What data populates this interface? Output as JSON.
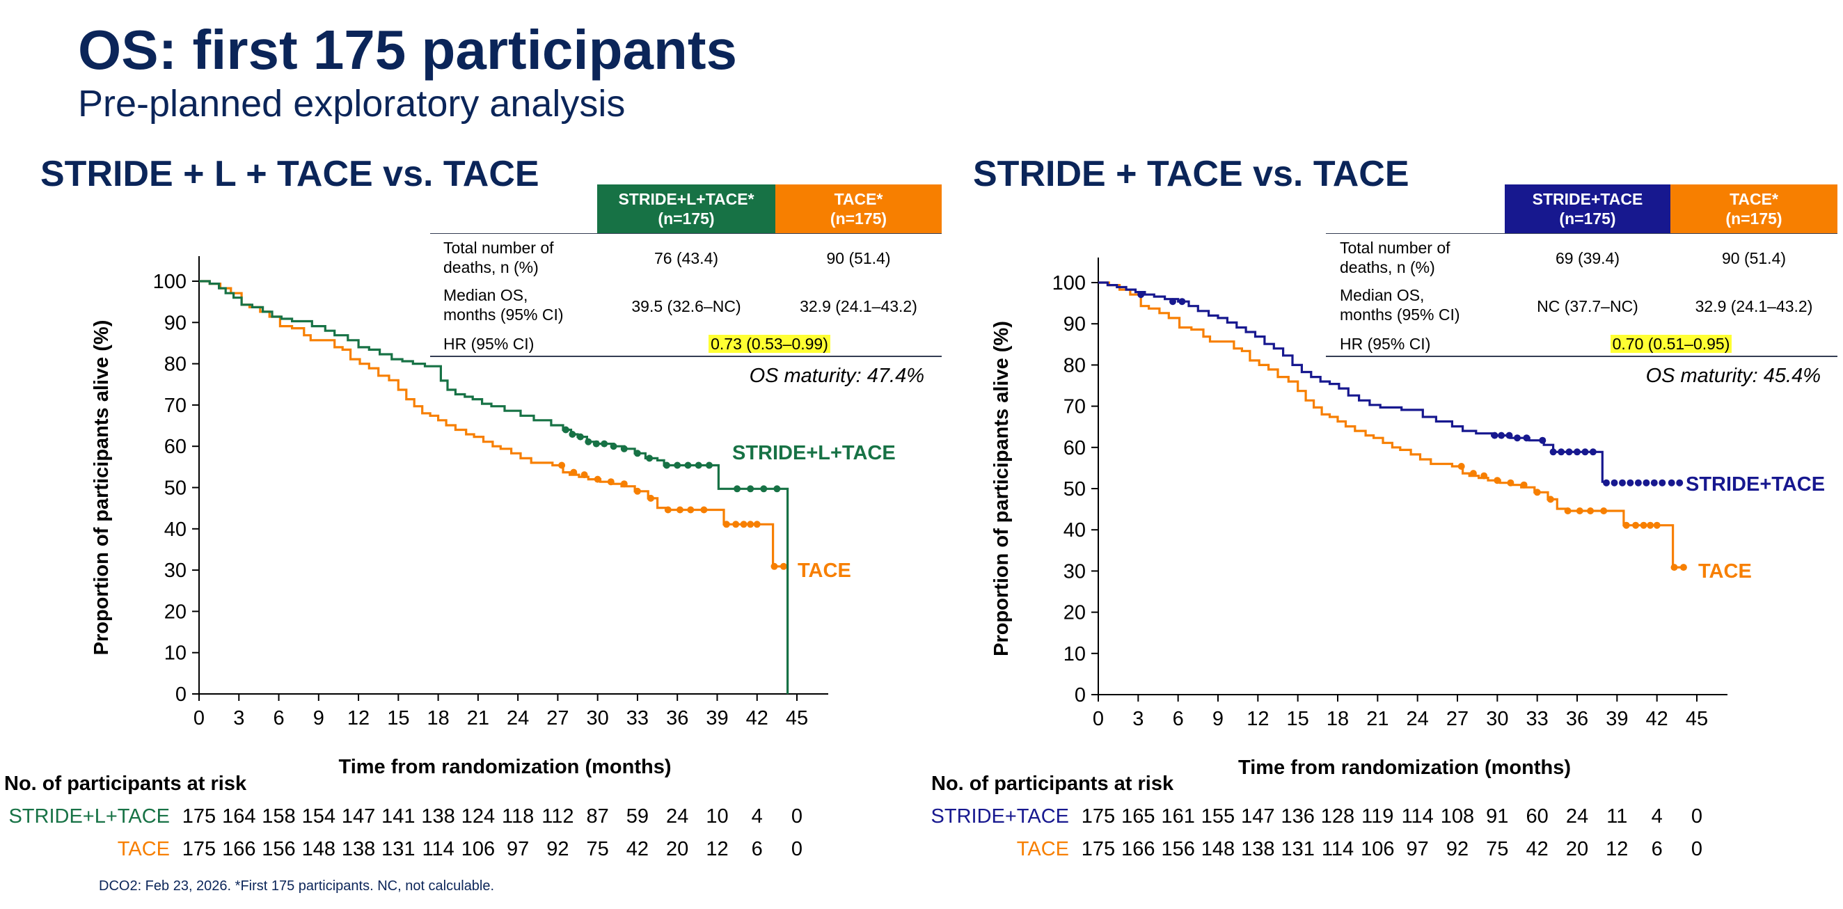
{
  "title": "OS: first 175 participants",
  "subtitle": "Pre-planned exploratory analysis",
  "colors": {
    "navy": "#0b2559",
    "green": "#177245",
    "orange": "#f77f00",
    "blue": "#17188f",
    "highlight": "#ffff33"
  },
  "footnote": "DCO2: Feb 23, 2026. *First 175 participants. NC, not calculable.",
  "panels": [
    {
      "title": "STRIDE + L + TACE vs. TACE",
      "table": {
        "col1_header": "STRIDE+L+TACE*",
        "col1_n": "(n=175)",
        "col2_header": "TACE*",
        "col2_n": "(n=175)",
        "row1_label_a": "Total number of",
        "row1_label_b": "deaths, n (%)",
        "row1_col1": "76 (43.4)",
        "row1_col2": "90 (51.4)",
        "row2_label_a": "Median OS,",
        "row2_label_b": "months (95% CI)",
        "row2_col1": "39.5 (32.6–NC)",
        "row2_col2": "32.9 (24.1–43.2)",
        "row3_label": "HR (95% CI)",
        "row3_value": "0.73 (0.53–0.99)"
      },
      "maturity": "OS maturity: 47.4%",
      "series_labels": {
        "treatment": "STRIDE+L+TACE",
        "control": "TACE"
      },
      "risk": {
        "heading": "No. of participants at risk",
        "treatment_label": "STRIDE+L+TACE",
        "treatment": [
          "175",
          "164",
          "158",
          "154",
          "147",
          "141",
          "138",
          "124",
          "118",
          "112",
          "87",
          "59",
          "24",
          "10",
          "4",
          "0"
        ],
        "control_label": "TACE",
        "control": [
          "175",
          "166",
          "156",
          "148",
          "138",
          "131",
          "114",
          "106",
          "97",
          "92",
          "75",
          "42",
          "20",
          "12",
          "6",
          "0"
        ]
      }
    },
    {
      "title": "STRIDE + TACE vs. TACE",
      "table": {
        "col1_header": "STRIDE+TACE",
        "col1_n": "(n=175)",
        "col2_header": "TACE*",
        "col2_n": "(n=175)",
        "row1_label_a": "Total number of",
        "row1_label_b": "deaths, n (%)",
        "row1_col1": "69 (39.4)",
        "row1_col2": "90 (51.4)",
        "row2_label_a": "Median OS,",
        "row2_label_b": "months (95% CI)",
        "row2_col1": "NC (37.7–NC)",
        "row2_col2": "32.9 (24.1–43.2)",
        "row3_label": "HR (95% CI)",
        "row3_value": "0.70 (0.51–0.95)"
      },
      "maturity": "OS maturity: 45.4%",
      "series_labels": {
        "treatment": "STRIDE+TACE",
        "control": "TACE"
      },
      "risk": {
        "heading": "No. of participants at risk",
        "treatment_label": "STRIDE+TACE",
        "treatment": [
          "175",
          "165",
          "161",
          "155",
          "147",
          "136",
          "128",
          "119",
          "114",
          "108",
          "91",
          "60",
          "24",
          "11",
          "4",
          "0"
        ],
        "control_label": "TACE",
        "control": [
          "175",
          "166",
          "156",
          "148",
          "138",
          "131",
          "114",
          "106",
          "97",
          "92",
          "75",
          "42",
          "20",
          "12",
          "6",
          "0"
        ]
      }
    }
  ],
  "chart_data": [
    {
      "type": "line",
      "title": "STRIDE + L + TACE vs. TACE",
      "xlabel": "Time from randomization (months)",
      "ylabel": "Proportion of participants alive (%)",
      "xlim": [
        0,
        47
      ],
      "ylim": [
        0,
        100
      ],
      "xticks": [
        0,
        3,
        6,
        9,
        12,
        15,
        18,
        21,
        24,
        27,
        30,
        33,
        36,
        39,
        42,
        45
      ],
      "yticks": [
        0,
        10,
        20,
        30,
        40,
        50,
        60,
        70,
        80,
        90,
        100
      ],
      "series": [
        {
          "name": "STRIDE+L+TACE",
          "color": "#177245",
          "x": [
            0,
            0.8,
            1.5,
            2,
            2.6,
            3.2,
            4,
            4.8,
            5.5,
            6.2,
            7,
            8.5,
            9.5,
            10.2,
            11.2,
            12,
            12.8,
            13.6,
            14.5,
            15.3,
            16.1,
            17,
            18.2,
            18.7,
            19.3,
            20,
            20.6,
            21.3,
            22,
            23,
            24.2,
            25.2,
            26.5,
            27.4,
            28,
            28.5,
            29.2,
            30,
            31.2,
            32,
            32.8,
            33.6,
            34.5,
            35,
            36,
            37.5,
            38.9,
            39.1,
            39.8,
            43.5,
            44.3,
            44.3
          ],
          "y": [
            100,
            99.4,
            98.3,
            97.1,
            96,
            94.3,
            93.7,
            92.6,
            91.4,
            90.9,
            90.3,
            89.1,
            88,
            86.9,
            85.7,
            84,
            83.4,
            82.3,
            81.1,
            80.6,
            80,
            79.4,
            75.9,
            73.7,
            72.6,
            72,
            71.4,
            70.3,
            69.7,
            68.6,
            67.4,
            66.3,
            65.1,
            64,
            62.9,
            62.3,
            61.1,
            60.6,
            60,
            59.4,
            58.3,
            57.1,
            56.6,
            55.4,
            55.4,
            55.4,
            55.4,
            49.7,
            49.7,
            49.7,
            49.7,
            0
          ],
          "censor_x": [
            27.6,
            28.1,
            28.7,
            29.3,
            29.9,
            30.5,
            31.2,
            32,
            33,
            33.9,
            35.2,
            36,
            36.8,
            37.6,
            38.4,
            40.5,
            41.5,
            42.5,
            43.5
          ],
          "censor_y": [
            64,
            62.9,
            62.3,
            61.1,
            60.6,
            60.6,
            60,
            59.4,
            58.3,
            57.1,
            55.4,
            55.4,
            55.4,
            55.4,
            55.4,
            49.7,
            49.7,
            49.7,
            49.7
          ]
        },
        {
          "name": "TACE",
          "color": "#f77f00",
          "x": [
            0,
            0.8,
            1.6,
            2.4,
            3.2,
            3.8,
            4.6,
            5.3,
            6.1,
            7,
            7.9,
            8.4,
            10.2,
            10.8,
            11.4,
            12.1,
            12.8,
            13.5,
            14.3,
            15,
            15.6,
            16.2,
            16.8,
            17.4,
            18,
            18.6,
            19.3,
            20.1,
            20.7,
            21.4,
            22.1,
            22.7,
            23.5,
            24.2,
            25,
            25.7,
            26.6,
            27.4,
            27.9,
            28.6,
            29.3,
            30.2,
            31,
            31.8,
            32.8,
            33.8,
            34.5,
            35.2,
            36,
            38.9,
            39.5,
            42.7,
            43.2,
            44
          ],
          "y": [
            100,
            99.4,
            98.3,
            97.1,
            94.3,
            93.7,
            92.6,
            91.4,
            89.1,
            88.6,
            86.9,
            85.7,
            84,
            83.4,
            81.1,
            80,
            78.9,
            77.1,
            76,
            73.7,
            71.4,
            69.7,
            68,
            67.4,
            66.3,
            65.1,
            64,
            62.9,
            62.3,
            61.1,
            60,
            59.4,
            58.3,
            57.1,
            56,
            56,
            55.4,
            53.7,
            53.1,
            52.6,
            52,
            51.4,
            50.9,
            50.3,
            49.1,
            47.4,
            45.1,
            44.6,
            44.6,
            44.6,
            41.1,
            41.1,
            30.9,
            30.9
          ],
          "censor_x": [
            27.3,
            28.2,
            29,
            30,
            31,
            32,
            33,
            34,
            35.3,
            36.2,
            37,
            38,
            39.7,
            40.4,
            41,
            41.5,
            42,
            43.3,
            44
          ],
          "censor_y": [
            55.4,
            53.7,
            53.1,
            52,
            51.4,
            50.9,
            49.1,
            47.4,
            44.6,
            44.6,
            44.6,
            44.6,
            41.1,
            41.1,
            41.1,
            41.1,
            41.1,
            30.9,
            30.9
          ]
        }
      ]
    },
    {
      "type": "line",
      "title": "STRIDE + TACE vs. TACE",
      "xlabel": "Time from randomization (months)",
      "ylabel": "Proportion of participants alive (%)",
      "xlim": [
        0,
        47
      ],
      "ylim": [
        0,
        100
      ],
      "xticks": [
        0,
        3,
        6,
        9,
        12,
        15,
        18,
        21,
        24,
        27,
        30,
        33,
        36,
        39,
        42,
        45
      ],
      "yticks": [
        0,
        10,
        20,
        30,
        40,
        50,
        60,
        70,
        80,
        90,
        100
      ],
      "series": [
        {
          "name": "STRIDE+TACE",
          "color": "#17188f",
          "x": [
            0,
            0.7,
            1.4,
            2.1,
            2.8,
            3.5,
            4.2,
            5,
            6,
            6.8,
            7.5,
            8.3,
            9,
            9.7,
            10.4,
            11.1,
            11.8,
            12.5,
            13.2,
            13.9,
            14.6,
            15.3,
            16,
            16.7,
            17.4,
            18.1,
            18.8,
            19.6,
            20.4,
            21.2,
            22.8,
            24.4,
            25.4,
            26.6,
            27.4,
            28.4,
            29.6,
            31,
            32.4,
            33.5,
            34.2,
            37.6,
            37.9
          ],
          "y": [
            100,
            99.4,
            98.9,
            98.3,
            97.7,
            97.1,
            96.6,
            96,
            95.4,
            94.3,
            93.1,
            92,
            91.4,
            90.3,
            89.1,
            88,
            86.9,
            85.1,
            84,
            82.3,
            80,
            78.3,
            77.1,
            76,
            75.4,
            74.3,
            72.6,
            71.4,
            70.3,
            69.7,
            69.1,
            67.4,
            66.3,
            65.1,
            64,
            63.4,
            62.9,
            62.3,
            61.7,
            60.6,
            58.9,
            58.9,
            51.4
          ],
          "censor_x": [
            3.2,
            5.6,
            6.3,
            29.8,
            30.3,
            30.9,
            31.5,
            32.2,
            33.4,
            34.2,
            34.8,
            35.4,
            36,
            36.6,
            37.2,
            38.2,
            38.8,
            39.4,
            40,
            40.6,
            41.2,
            41.8,
            42.4,
            43.1,
            43.7
          ],
          "censor_y": [
            97.1,
            95.4,
            95.4,
            62.9,
            62.9,
            62.9,
            62.3,
            62.3,
            61.7,
            58.9,
            58.9,
            58.9,
            58.9,
            58.9,
            58.9,
            51.4,
            51.4,
            51.4,
            51.4,
            51.4,
            51.4,
            51.4,
            51.4,
            51.4,
            51.4
          ]
        },
        {
          "name": "TACE",
          "color": "#f77f00",
          "x": [
            0,
            0.8,
            1.6,
            2.4,
            3.2,
            3.8,
            4.6,
            5.3,
            6.1,
            7,
            7.9,
            8.4,
            10.2,
            10.8,
            11.4,
            12.1,
            12.8,
            13.5,
            14.3,
            15,
            15.6,
            16.2,
            16.8,
            17.4,
            18,
            18.6,
            19.3,
            20.1,
            20.7,
            21.4,
            22.1,
            22.7,
            23.5,
            24.2,
            25,
            25.7,
            26.6,
            27.4,
            27.9,
            28.6,
            29.3,
            30.2,
            31,
            31.8,
            32.8,
            33.8,
            34.5,
            35.2,
            36,
            38.9,
            39.5,
            42.7,
            43.2,
            44
          ],
          "y": [
            100,
            99.4,
            98.3,
            97.1,
            94.3,
            93.7,
            92.6,
            91.4,
            89.1,
            88.6,
            86.9,
            85.7,
            84,
            83.4,
            81.1,
            80,
            78.9,
            77.1,
            76,
            73.7,
            71.4,
            69.7,
            68,
            67.4,
            66.3,
            65.1,
            64,
            62.9,
            62.3,
            61.1,
            60,
            59.4,
            58.3,
            57.1,
            56,
            56,
            55.4,
            53.7,
            53.1,
            52.6,
            52,
            51.4,
            50.9,
            50.3,
            49.1,
            47.4,
            45.1,
            44.6,
            44.6,
            44.6,
            41.1,
            41.1,
            30.9,
            30.9
          ],
          "censor_x": [
            27.3,
            28.2,
            29,
            30,
            31,
            32,
            33,
            34,
            35.3,
            36.2,
            37,
            38,
            39.7,
            40.4,
            41,
            41.5,
            42,
            43.3,
            44
          ],
          "censor_y": [
            55.4,
            53.7,
            53.1,
            52,
            51.4,
            50.9,
            49.1,
            47.4,
            44.6,
            44.6,
            44.6,
            44.6,
            41.1,
            41.1,
            41.1,
            41.1,
            41.1,
            30.9,
            30.9
          ]
        }
      ]
    }
  ]
}
